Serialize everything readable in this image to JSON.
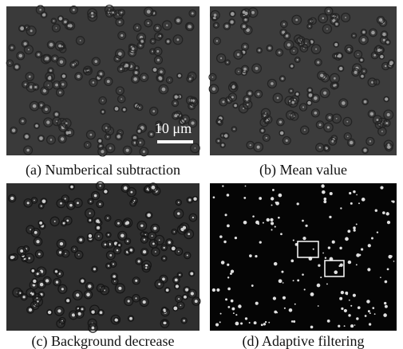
{
  "panels": [
    {
      "caption": "(a) Numberical subtraction",
      "scale_bar": "10 μm"
    },
    {
      "caption": "(b) Mean value"
    },
    {
      "caption": "(c) Background decrease"
    },
    {
      "caption": "(d) Adaptive filtering"
    }
  ]
}
